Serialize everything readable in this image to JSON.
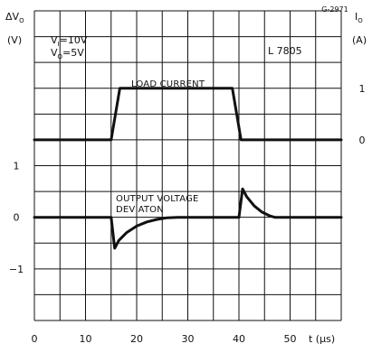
{
  "chart_data": {
    "type": "line",
    "figure_code": "G-2971",
    "device_label": "L 7805",
    "conditions": [
      {
        "symbol": "V",
        "sub": "I",
        "rest": "=10V"
      },
      {
        "symbol": "V",
        "sub": "O",
        "rest": "=5V"
      }
    ],
    "left_axis": {
      "symbol": "ΔV",
      "symbol_sub": "O",
      "unit": "(V)",
      "ticks": [
        {
          "value": 1,
          "label": "1"
        },
        {
          "value": 0,
          "label": "0"
        },
        {
          "value": -1,
          "label": "−1"
        }
      ]
    },
    "right_axis": {
      "symbol": "I",
      "symbol_sub": "O",
      "unit": "(A)",
      "ticks": [
        {
          "value": 1,
          "label": "1"
        },
        {
          "value": 0,
          "label": "0"
        }
      ]
    },
    "x_axis": {
      "label": "t (µs)",
      "range": [
        0,
        60
      ],
      "ticks": [
        {
          "value": 0,
          "label": "0"
        },
        {
          "value": 10,
          "label": "10"
        },
        {
          "value": 20,
          "label": "20"
        },
        {
          "value": 30,
          "label": "30"
        },
        {
          "value": 40,
          "label": "40"
        },
        {
          "value": 50,
          "label": "50"
        }
      ]
    },
    "grid": true,
    "series": [
      {
        "name": "LOAD CURRENT",
        "axis": "right",
        "points": [
          [
            0,
            0
          ],
          [
            15,
            0
          ],
          [
            16.7,
            1
          ],
          [
            38.7,
            1
          ],
          [
            40.4,
            0
          ],
          [
            60,
            0
          ]
        ]
      },
      {
        "name": "OUTPUT VOLTAGE DEVIATON",
        "label_lines": [
          "OUTPUT VOLTAGE",
          "DEVIATON"
        ],
        "axis": "left",
        "points": [
          [
            0,
            0
          ],
          [
            15,
            0
          ],
          [
            15.7,
            -0.6
          ],
          [
            16.5,
            -0.45
          ],
          [
            18,
            -0.3
          ],
          [
            20,
            -0.17
          ],
          [
            22,
            -0.09
          ],
          [
            24,
            -0.04
          ],
          [
            26,
            -0.01
          ],
          [
            28,
            0
          ],
          [
            40,
            0
          ],
          [
            40.7,
            0.55
          ],
          [
            41.5,
            0.4
          ],
          [
            43,
            0.22
          ],
          [
            44.5,
            0.1
          ],
          [
            46,
            0.03
          ],
          [
            47,
            0
          ],
          [
            60,
            0
          ]
        ]
      }
    ]
  }
}
